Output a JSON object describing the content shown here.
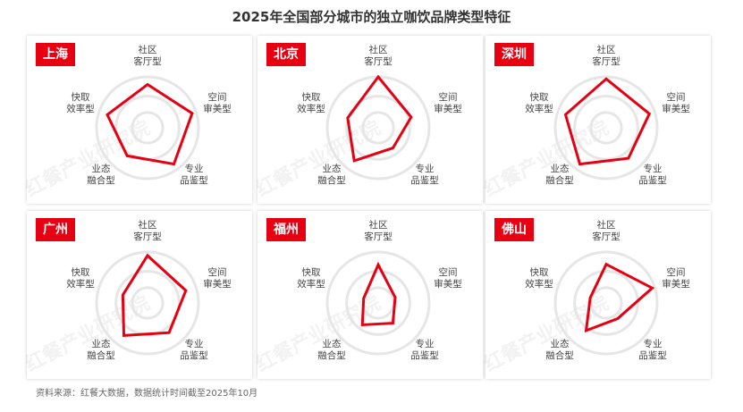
{
  "title": "2025年全国部分城市的独立咖饮品牌类型特征",
  "footer": "资料来源：红餐大数据，数据统计时间截至2025年10月",
  "watermark": "红餐产业研究院",
  "colors": {
    "accent": "#e60012",
    "grid": "#e6e6e6"
  },
  "chart_data": {
    "type": "radar",
    "axes": [
      [
        "社区",
        "客厅型"
      ],
      [
        "空间",
        "审美型"
      ],
      [
        "专业",
        "品鉴型"
      ],
      [
        "业态",
        "融合型"
      ],
      [
        "快取",
        "效率型"
      ]
    ],
    "range": [
      0,
      100
    ],
    "charts": [
      {
        "city": "上海",
        "values": [
          85,
          92,
          88,
          68,
          83
        ]
      },
      {
        "city": "北京",
        "values": [
          100,
          68,
          49,
          80,
          63
        ]
      },
      {
        "city": "深圳",
        "values": [
          96,
          89,
          74,
          88,
          84
        ]
      },
      {
        "city": "广州",
        "values": [
          93,
          79,
          72,
          79,
          51
        ]
      },
      {
        "city": "福州",
        "values": [
          75,
          35,
          49,
          53,
          30
        ]
      },
      {
        "city": "佛山",
        "values": [
          76,
          95,
          38,
          67,
          33
        ]
      }
    ]
  }
}
